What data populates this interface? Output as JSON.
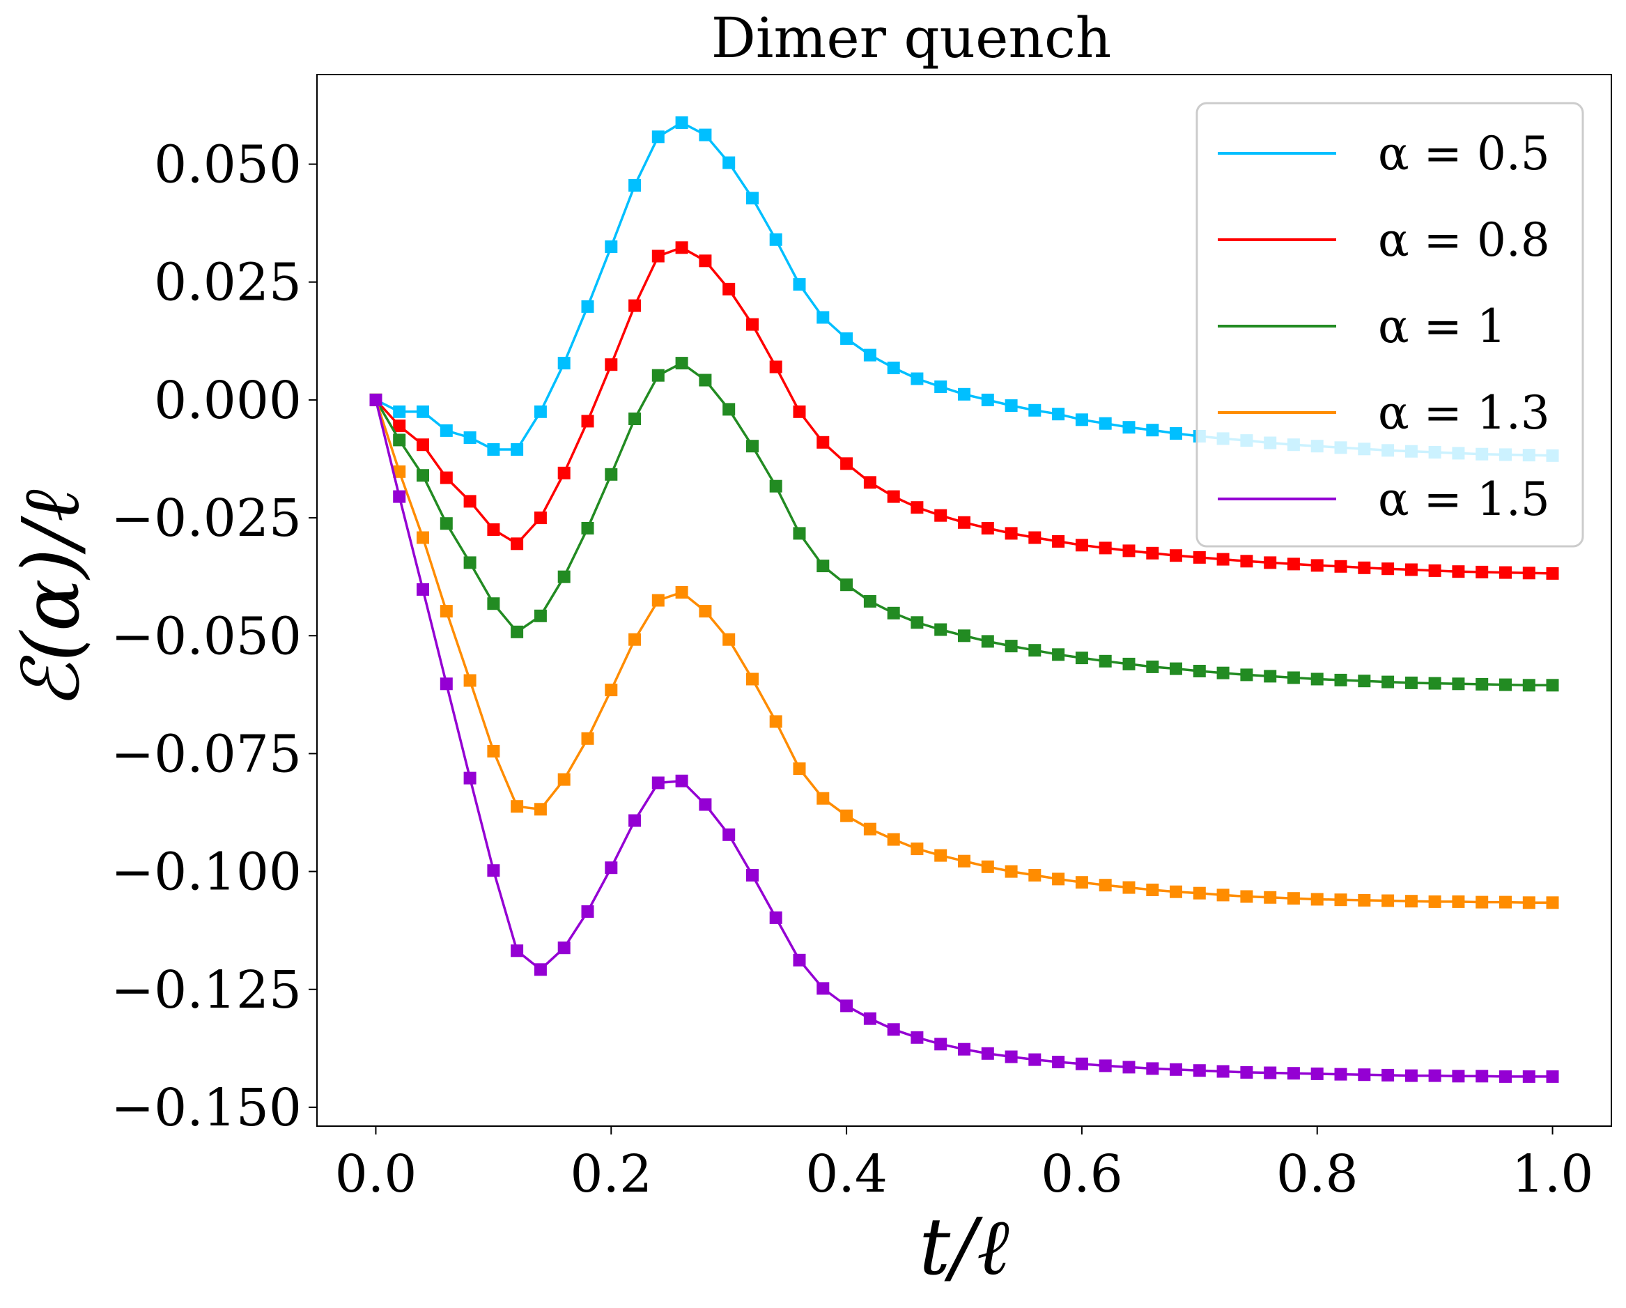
{
  "chart_data": {
    "type": "line",
    "title": "Dimer quench",
    "xlabel": "t/ℓ",
    "ylabel": "ℰ(α)/ℓ",
    "xlim": [
      -0.05,
      1.05
    ],
    "ylim": [
      -0.154,
      0.069
    ],
    "xticks": [
      0.0,
      0.2,
      0.4,
      0.6,
      0.8,
      1.0
    ],
    "xtick_labels": [
      "0.0",
      "0.2",
      "0.4",
      "0.6",
      "0.8",
      "1.0"
    ],
    "yticks": [
      0.05,
      0.025,
      0.0,
      -0.025,
      -0.05,
      -0.075,
      -0.1,
      -0.125,
      -0.15
    ],
    "ytick_labels": [
      "0.050",
      "0.025",
      "0.000",
      "−0.025",
      "−0.050",
      "−0.075",
      "−0.100",
      "−0.125",
      "−0.150"
    ],
    "legend_position": "top-right",
    "grid": false,
    "marker": "square",
    "x": [
      0.0,
      0.02,
      0.04,
      0.06,
      0.08,
      0.1,
      0.12,
      0.14,
      0.16,
      0.18,
      0.2,
      0.22,
      0.24,
      0.26,
      0.28,
      0.3,
      0.32,
      0.34,
      0.36,
      0.38,
      0.4,
      0.42,
      0.44,
      0.46,
      0.48,
      0.5,
      0.52,
      0.54,
      0.56,
      0.58,
      0.6,
      0.62,
      0.64,
      0.66,
      0.68,
      0.7,
      0.72,
      0.74,
      0.76,
      0.78,
      0.8,
      0.82,
      0.84,
      0.86,
      0.88,
      0.9,
      0.92,
      0.94,
      0.96,
      0.98,
      1.0
    ],
    "series": [
      {
        "name": "α = 0.5",
        "color": "#00bfff",
        "values": [
          0.0,
          -0.0025,
          -0.0025,
          -0.0065,
          -0.008,
          -0.0105,
          -0.0105,
          -0.0025,
          0.0078,
          0.0198,
          0.0325,
          0.0455,
          0.0558,
          0.0588,
          0.0562,
          0.0503,
          0.0428,
          0.034,
          0.0245,
          0.0175,
          0.013,
          0.0095,
          0.0068,
          0.0045,
          0.0028,
          0.0012,
          0.0,
          -0.0012,
          -0.0022,
          -0.003,
          -0.0042,
          -0.005,
          -0.0058,
          -0.0064,
          -0.0071,
          -0.0077,
          -0.0082,
          -0.0086,
          -0.0091,
          -0.0095,
          -0.0098,
          -0.0101,
          -0.0104,
          -0.0107,
          -0.0109,
          -0.0111,
          -0.0113,
          -0.0115,
          -0.0116,
          -0.0117,
          -0.0118
        ]
      },
      {
        "name": "α = 0.8",
        "color": "#ff0000",
        "values": [
          0.0,
          -0.0055,
          -0.0095,
          -0.0165,
          -0.0215,
          -0.0275,
          -0.0305,
          -0.025,
          -0.0155,
          -0.0045,
          0.0075,
          0.02,
          0.0305,
          0.0323,
          0.0295,
          0.0235,
          0.016,
          0.007,
          -0.0025,
          -0.009,
          -0.0135,
          -0.0175,
          -0.0205,
          -0.0228,
          -0.0245,
          -0.026,
          -0.0272,
          -0.0283,
          -0.0292,
          -0.03,
          -0.0308,
          -0.0314,
          -0.032,
          -0.0325,
          -0.033,
          -0.0334,
          -0.0338,
          -0.0342,
          -0.0345,
          -0.0348,
          -0.0351,
          -0.0353,
          -0.0356,
          -0.0358,
          -0.036,
          -0.0362,
          -0.0364,
          -0.0365,
          -0.0366,
          -0.0367,
          -0.0368
        ]
      },
      {
        "name": "α = 1",
        "color": "#228b22",
        "values": [
          0.0,
          -0.0085,
          -0.016,
          -0.0262,
          -0.0345,
          -0.0432,
          -0.0492,
          -0.0458,
          -0.0375,
          -0.0272,
          -0.0158,
          -0.004,
          0.0052,
          0.0078,
          0.0042,
          -0.002,
          -0.0098,
          -0.0183,
          -0.0283,
          -0.0352,
          -0.0392,
          -0.0427,
          -0.0452,
          -0.0472,
          -0.0487,
          -0.05,
          -0.0512,
          -0.0522,
          -0.0531,
          -0.054,
          -0.0547,
          -0.0554,
          -0.056,
          -0.0566,
          -0.057,
          -0.0575,
          -0.0579,
          -0.0583,
          -0.0586,
          -0.0589,
          -0.0592,
          -0.0594,
          -0.0596,
          -0.0598,
          -0.06,
          -0.0601,
          -0.0602,
          -0.0603,
          -0.0604,
          -0.0605,
          -0.0605
        ]
      },
      {
        "name": "α = 1.3",
        "color": "#ff8c00",
        "values": [
          0.0,
          -0.0152,
          -0.0292,
          -0.0448,
          -0.0595,
          -0.0745,
          -0.0862,
          -0.0868,
          -0.0805,
          -0.0718,
          -0.0615,
          -0.0508,
          -0.0425,
          -0.0408,
          -0.0448,
          -0.0508,
          -0.0592,
          -0.0682,
          -0.0782,
          -0.0845,
          -0.0882,
          -0.091,
          -0.0932,
          -0.0952,
          -0.0966,
          -0.0978,
          -0.099,
          -0.1,
          -0.1008,
          -0.1016,
          -0.1023,
          -0.1029,
          -0.1034,
          -0.1039,
          -0.1043,
          -0.1046,
          -0.105,
          -0.1053,
          -0.1055,
          -0.1057,
          -0.1059,
          -0.106,
          -0.1061,
          -0.1062,
          -0.1063,
          -0.1064,
          -0.1064,
          -0.1065,
          -0.1065,
          -0.1066,
          -0.1066
        ]
      },
      {
        "name": "α = 1.5",
        "color": "#9400d3",
        "values": [
          0.0,
          -0.0205,
          -0.0402,
          -0.0602,
          -0.0802,
          -0.0998,
          -0.1168,
          -0.1208,
          -0.1162,
          -0.1085,
          -0.0992,
          -0.0892,
          -0.0812,
          -0.0808,
          -0.0858,
          -0.0922,
          -0.1008,
          -0.1098,
          -0.1188,
          -0.1248,
          -0.1285,
          -0.1312,
          -0.1335,
          -0.1352,
          -0.1366,
          -0.1377,
          -0.1386,
          -0.1393,
          -0.1399,
          -0.1404,
          -0.1408,
          -0.1412,
          -0.1415,
          -0.1418,
          -0.142,
          -0.1422,
          -0.1424,
          -0.1426,
          -0.1427,
          -0.1428,
          -0.1429,
          -0.143,
          -0.1431,
          -0.1432,
          -0.1433,
          -0.1433,
          -0.1434,
          -0.1434,
          -0.1435,
          -0.1435,
          -0.1435
        ]
      }
    ]
  }
}
